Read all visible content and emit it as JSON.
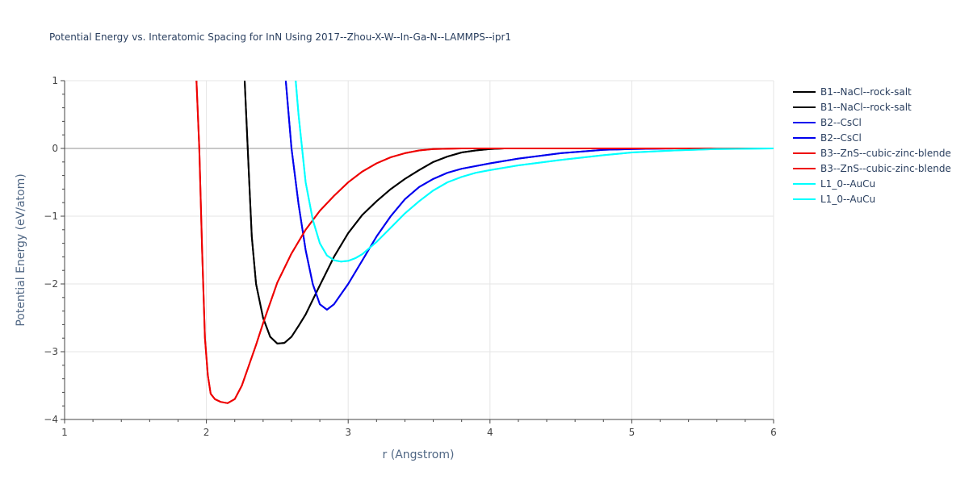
{
  "chart_data": {
    "type": "line",
    "title": "Potential Energy vs. Interatomic Spacing for InN Using 2017--Zhou-X-W--In-Ga-N--LAMMPS--ipr1",
    "xlabel": "r (Angstrom)",
    "ylabel": "Potential Energy (eV/atom)",
    "xlim": [
      1,
      6
    ],
    "ylim": [
      -4,
      1
    ],
    "x_ticks": [
      1,
      2,
      3,
      4,
      5,
      6
    ],
    "y_ticks": [
      -4,
      -3,
      -2,
      -1,
      0,
      1
    ],
    "x_tick_labels": [
      "1",
      "2",
      "3",
      "4",
      "5",
      "6"
    ],
    "y_tick_labels": [
      "−4",
      "−3",
      "−2",
      "−1",
      "0",
      "1"
    ],
    "grid": true,
    "legend_position": "right",
    "series": [
      {
        "name": "B1--NaCl--rock-salt",
        "color": "#000000",
        "x": [
          2.27,
          2.3,
          2.32,
          2.35,
          2.4,
          2.45,
          2.5,
          2.55,
          2.6,
          2.65,
          2.7,
          2.8,
          2.9,
          3.0,
          3.1,
          3.2,
          3.3,
          3.4,
          3.5,
          3.6,
          3.7,
          3.8,
          3.9,
          4.0,
          4.1,
          4.2,
          4.5,
          5.0,
          5.5,
          6.0
        ],
        "y": [
          1.0,
          -0.4,
          -1.3,
          -2.0,
          -2.5,
          -2.78,
          -2.88,
          -2.87,
          -2.78,
          -2.62,
          -2.45,
          -2.02,
          -1.6,
          -1.25,
          -0.98,
          -0.78,
          -0.6,
          -0.45,
          -0.32,
          -0.2,
          -0.12,
          -0.06,
          -0.03,
          -0.01,
          0.0,
          0.0,
          0.0,
          0.0,
          0.0,
          0.0
        ]
      },
      {
        "name": "B1--NaCl--rock-salt",
        "color": "#000000",
        "x": [
          2.27,
          2.3,
          2.32,
          2.35,
          2.4,
          2.45,
          2.5,
          2.55,
          2.6,
          2.65,
          2.7,
          2.8,
          2.9,
          3.0,
          3.1,
          3.2,
          3.3,
          3.4,
          3.5,
          3.6,
          3.7,
          3.8,
          3.9,
          4.0,
          4.1,
          4.2,
          4.5,
          5.0,
          5.5,
          6.0
        ],
        "y": [
          1.0,
          -0.4,
          -1.3,
          -2.0,
          -2.5,
          -2.78,
          -2.88,
          -2.87,
          -2.78,
          -2.62,
          -2.45,
          -2.02,
          -1.6,
          -1.25,
          -0.98,
          -0.78,
          -0.6,
          -0.45,
          -0.32,
          -0.2,
          -0.12,
          -0.06,
          -0.03,
          -0.01,
          0.0,
          0.0,
          0.0,
          0.0,
          0.0,
          0.0
        ]
      },
      {
        "name": "B2--CsCl",
        "color": "#0000ee",
        "x": [
          2.56,
          2.6,
          2.65,
          2.7,
          2.75,
          2.8,
          2.85,
          2.9,
          2.95,
          3.0,
          3.1,
          3.2,
          3.3,
          3.4,
          3.5,
          3.6,
          3.7,
          3.8,
          4.0,
          4.2,
          4.5,
          4.8,
          5.0,
          5.3,
          5.6,
          6.0
        ],
        "y": [
          1.0,
          0.0,
          -0.82,
          -1.5,
          -2.0,
          -2.3,
          -2.38,
          -2.3,
          -2.15,
          -2.0,
          -1.65,
          -1.3,
          -1.0,
          -0.75,
          -0.57,
          -0.45,
          -0.36,
          -0.3,
          -0.22,
          -0.15,
          -0.07,
          -0.02,
          -0.01,
          0.0,
          0.0,
          0.0
        ]
      },
      {
        "name": "B2--CsCl",
        "color": "#0000ee",
        "x": [
          2.56,
          2.6,
          2.65,
          2.7,
          2.75,
          2.8,
          2.85,
          2.9,
          2.95,
          3.0,
          3.1,
          3.2,
          3.3,
          3.4,
          3.5,
          3.6,
          3.7,
          3.8,
          4.0,
          4.2,
          4.5,
          4.8,
          5.0,
          5.3,
          5.6,
          6.0
        ],
        "y": [
          1.0,
          0.0,
          -0.82,
          -1.5,
          -2.0,
          -2.3,
          -2.38,
          -2.3,
          -2.15,
          -2.0,
          -1.65,
          -1.3,
          -1.0,
          -0.75,
          -0.57,
          -0.45,
          -0.36,
          -0.3,
          -0.22,
          -0.15,
          -0.07,
          -0.02,
          -0.01,
          0.0,
          0.0,
          0.0
        ]
      },
      {
        "name": "B3--ZnS--cubic-zinc-blende",
        "color": "#ee0000",
        "x": [
          1.93,
          1.95,
          1.97,
          1.99,
          2.01,
          2.03,
          2.06,
          2.1,
          2.15,
          2.2,
          2.25,
          2.3,
          2.35,
          2.4,
          2.5,
          2.6,
          2.7,
          2.8,
          2.9,
          3.0,
          3.1,
          3.2,
          3.3,
          3.4,
          3.5,
          3.6,
          3.8,
          4.0,
          4.5,
          5.0,
          5.5,
          6.0
        ],
        "y": [
          1.0,
          0.0,
          -1.5,
          -2.8,
          -3.35,
          -3.62,
          -3.7,
          -3.74,
          -3.76,
          -3.7,
          -3.5,
          -3.2,
          -2.9,
          -2.58,
          -1.98,
          -1.55,
          -1.2,
          -0.92,
          -0.7,
          -0.5,
          -0.34,
          -0.22,
          -0.13,
          -0.07,
          -0.03,
          -0.01,
          0.0,
          0.0,
          0.0,
          0.0,
          0.0,
          0.0
        ]
      },
      {
        "name": "B3--ZnS--cubic-zinc-blende",
        "color": "#ee0000",
        "x": [
          1.93,
          1.95,
          1.97,
          1.99,
          2.01,
          2.03,
          2.06,
          2.1,
          2.15,
          2.2,
          2.25,
          2.3,
          2.35,
          2.4,
          2.5,
          2.6,
          2.7,
          2.8,
          2.9,
          3.0,
          3.1,
          3.2,
          3.3,
          3.4,
          3.5,
          3.6,
          3.8,
          4.0,
          4.5,
          5.0,
          5.5,
          6.0
        ],
        "y": [
          1.0,
          0.0,
          -1.5,
          -2.8,
          -3.35,
          -3.62,
          -3.7,
          -3.74,
          -3.76,
          -3.7,
          -3.5,
          -3.2,
          -2.9,
          -2.58,
          -1.98,
          -1.55,
          -1.2,
          -0.92,
          -0.7,
          -0.5,
          -0.34,
          -0.22,
          -0.13,
          -0.07,
          -0.03,
          -0.01,
          0.0,
          0.0,
          0.0,
          0.0,
          0.0,
          0.0
        ]
      },
      {
        "name": "L1_0--AuCu",
        "color": "#00ffff",
        "x": [
          2.63,
          2.65,
          2.7,
          2.75,
          2.8,
          2.85,
          2.9,
          2.95,
          3.0,
          3.05,
          3.1,
          3.2,
          3.3,
          3.4,
          3.5,
          3.6,
          3.7,
          3.8,
          3.9,
          4.0,
          4.2,
          4.5,
          4.8,
          5.0,
          5.3,
          5.6,
          6.0
        ],
        "y": [
          1.0,
          0.5,
          -0.5,
          -1.05,
          -1.4,
          -1.58,
          -1.65,
          -1.67,
          -1.66,
          -1.62,
          -1.56,
          -1.38,
          -1.17,
          -0.96,
          -0.78,
          -0.62,
          -0.5,
          -0.42,
          -0.36,
          -0.32,
          -0.25,
          -0.17,
          -0.1,
          -0.06,
          -0.03,
          -0.01,
          0.0
        ]
      },
      {
        "name": "L1_0--AuCu",
        "color": "#00ffff",
        "x": [
          2.63,
          2.65,
          2.7,
          2.75,
          2.8,
          2.85,
          2.9,
          2.95,
          3.0,
          3.05,
          3.1,
          3.2,
          3.3,
          3.4,
          3.5,
          3.6,
          3.7,
          3.8,
          3.9,
          4.0,
          4.2,
          4.5,
          4.8,
          5.0,
          5.3,
          5.6,
          6.0
        ],
        "y": [
          1.0,
          0.5,
          -0.5,
          -1.05,
          -1.4,
          -1.58,
          -1.65,
          -1.67,
          -1.66,
          -1.62,
          -1.56,
          -1.38,
          -1.17,
          -0.96,
          -0.78,
          -0.62,
          -0.5,
          -0.42,
          -0.36,
          -0.32,
          -0.25,
          -0.17,
          -0.1,
          -0.06,
          -0.03,
          -0.01,
          0.0
        ]
      }
    ]
  }
}
